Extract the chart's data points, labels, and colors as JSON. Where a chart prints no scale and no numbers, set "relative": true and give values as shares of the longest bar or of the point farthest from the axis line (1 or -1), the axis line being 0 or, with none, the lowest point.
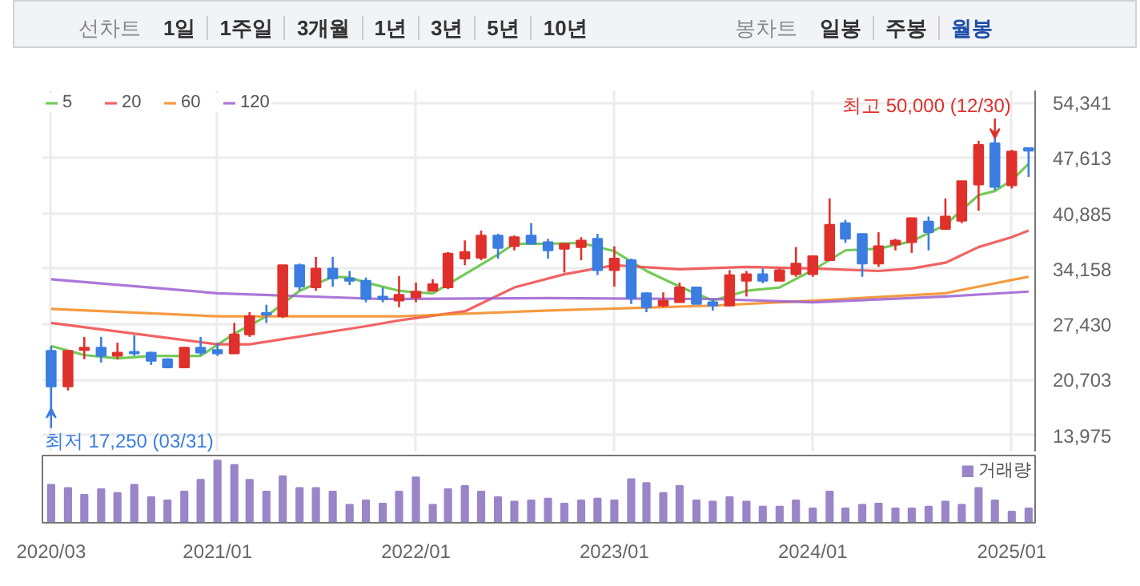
{
  "chart_data": [
    {
      "type": "candlestick",
      "annotations": [
        "선차트",
        "1일",
        "1주일",
        "3개월",
        "1년",
        "3년",
        "5년",
        "10년",
        "봉차트",
        "일봉",
        "주봉",
        "월봉",
        {
          "text": "최고 50,000 (12/30)",
          "x": "2024-12",
          "y": 50000
        },
        {
          "text": "최저 17,250 (03/31)",
          "x": "2020-03",
          "y": 17250
        }
      ],
      "x": [
        "2020-03",
        "2020-04",
        "2020-05",
        "2020-06",
        "2020-07",
        "2020-08",
        "2020-09",
        "2020-10",
        "2020-11",
        "2020-12",
        "2021-01",
        "2021-02",
        "2021-03",
        "2021-04",
        "2021-05",
        "2021-06",
        "2021-07",
        "2021-08",
        "2021-09",
        "2021-10",
        "2021-11",
        "2021-12",
        "2022-01",
        "2022-02",
        "2022-03",
        "2022-04",
        "2022-05",
        "2022-06",
        "2022-07",
        "2022-08",
        "2022-09",
        "2022-10",
        "2022-11",
        "2022-12",
        "2023-01",
        "2023-02",
        "2023-03",
        "2023-04",
        "2023-05",
        "2023-06",
        "2023-07",
        "2023-08",
        "2023-09",
        "2023-10",
        "2023-11",
        "2023-12",
        "2024-01",
        "2024-02",
        "2024-03",
        "2024-04",
        "2024-05",
        "2024-06",
        "2024-07",
        "2024-08",
        "2024-09",
        "2024-10",
        "2024-11",
        "2024-12",
        "2025-01",
        "2025-02"
      ],
      "ohlc": [
        [
          24200,
          24800,
          17250,
          19900
        ],
        [
          19900,
          24200,
          19400,
          24200
        ],
        [
          24300,
          25900,
          23200,
          24600
        ],
        [
          24600,
          25900,
          22800,
          23600
        ],
        [
          23600,
          25200,
          23200,
          24000
        ],
        [
          24100,
          26100,
          23600,
          23900
        ],
        [
          24000,
          24100,
          22500,
          23000
        ],
        [
          23200,
          23300,
          22100,
          22200
        ],
        [
          22200,
          24700,
          22200,
          24600
        ],
        [
          24600,
          25900,
          23700,
          24000
        ],
        [
          24300,
          25200,
          23600,
          23900
        ],
        [
          23900,
          27600,
          23900,
          26200
        ],
        [
          26200,
          28900,
          25900,
          28400
        ],
        [
          28800,
          29800,
          27600,
          28600
        ],
        [
          28400,
          34600,
          28200,
          34600
        ],
        [
          34600,
          34800,
          31500,
          32000
        ],
        [
          31900,
          35600,
          31500,
          34200
        ],
        [
          34200,
          35600,
          32000,
          33000
        ],
        [
          33000,
          33900,
          32200,
          32700
        ],
        [
          32700,
          33100,
          30100,
          30500
        ],
        [
          30800,
          31900,
          30100,
          30500
        ],
        [
          30300,
          33300,
          29500,
          31000
        ],
        [
          30700,
          32500,
          30100,
          31400
        ],
        [
          31500,
          32900,
          31500,
          32300
        ],
        [
          31900,
          36200,
          31700,
          36000
        ],
        [
          35400,
          37600,
          34600,
          36200
        ],
        [
          35500,
          38800,
          35200,
          38200
        ],
        [
          38200,
          38400,
          35400,
          36700
        ],
        [
          36900,
          38200,
          36400,
          38000
        ],
        [
          38200,
          39700,
          37200,
          37200
        ],
        [
          37400,
          37800,
          35400,
          36400
        ],
        [
          36600,
          37200,
          33700,
          37200
        ],
        [
          36800,
          38000,
          35200,
          37600
        ],
        [
          37800,
          38400,
          33400,
          34000
        ],
        [
          34000,
          36900,
          32000,
          35400
        ],
        [
          35200,
          35400,
          29900,
          30600
        ],
        [
          31200,
          31300,
          28900,
          29500
        ],
        [
          29700,
          31300,
          29500,
          30300
        ],
        [
          30100,
          32500,
          30100,
          31900
        ],
        [
          31900,
          31900,
          29900,
          29900
        ],
        [
          30100,
          30500,
          29100,
          29700
        ],
        [
          29700,
          34000,
          29700,
          33400
        ],
        [
          32700,
          33900,
          30800,
          33500
        ],
        [
          33500,
          34200,
          32400,
          32700
        ],
        [
          32700,
          34200,
          32700,
          34000
        ],
        [
          33500,
          36800,
          33200,
          34800
        ],
        [
          33500,
          35700,
          33200,
          35700
        ],
        [
          35200,
          42700,
          35200,
          39500
        ],
        [
          39700,
          40100,
          37300,
          37800
        ],
        [
          38400,
          38400,
          33200,
          34800
        ],
        [
          34800,
          38600,
          34400,
          36900
        ],
        [
          37100,
          37800,
          36400,
          37600
        ],
        [
          37400,
          40300,
          36100,
          40300
        ],
        [
          39900,
          40500,
          36400,
          38600
        ],
        [
          39000,
          42700,
          39000,
          40500
        ],
        [
          40000,
          44800,
          39700,
          44800
        ],
        [
          44400,
          49700,
          41200,
          49200
        ],
        [
          49400,
          50000,
          43700,
          44100
        ],
        [
          44300,
          48600,
          43900,
          48400
        ],
        [
          48800,
          48800,
          45300,
          48500
        ]
      ],
      "colors": [
        "#3b7de0",
        "#e0302b",
        "#e0302b",
        "#3b7de0",
        "#e0302b",
        "#3b7de0",
        "#3b7de0",
        "#3b7de0",
        "#e0302b",
        "#3b7de0",
        "#3b7de0",
        "#e0302b",
        "#e0302b",
        "#3b7de0",
        "#e0302b",
        "#3b7de0",
        "#e0302b",
        "#3b7de0",
        "#3b7de0",
        "#3b7de0",
        "#3b7de0",
        "#e0302b",
        "#e0302b",
        "#e0302b",
        "#e0302b",
        "#e0302b",
        "#e0302b",
        "#3b7de0",
        "#e0302b",
        "#3b7de0",
        "#3b7de0",
        "#e0302b",
        "#e0302b",
        "#3b7de0",
        "#e0302b",
        "#3b7de0",
        "#3b7de0",
        "#e0302b",
        "#e0302b",
        "#3b7de0",
        "#3b7de0",
        "#e0302b",
        "#e0302b",
        "#3b7de0",
        "#e0302b",
        "#e0302b",
        "#e0302b",
        "#e0302b",
        "#3b7de0",
        "#3b7de0",
        "#e0302b",
        "#e0302b",
        "#e0302b",
        "#3b7de0",
        "#e0302b",
        "#e0302b",
        "#e0302b",
        "#3b7de0",
        "#e0302b",
        "#3b7de0"
      ],
      "series": [
        {
          "type": "line",
          "name": "5",
          "color": "#5cc13c",
          "x": [
            "2020-03",
            "2020-05",
            "2020-07",
            "2020-09",
            "2020-12",
            "2021-02",
            "2021-04",
            "2021-06",
            "2021-08",
            "2021-09",
            "2021-10",
            "2021-12",
            "2022-01",
            "2022-02",
            "2022-04",
            "2022-06",
            "2022-07",
            "2022-09",
            "2022-11",
            "2023-01",
            "2023-03",
            "2023-05",
            "2023-07",
            "2023-09",
            "2023-11",
            "2024-01",
            "2024-03",
            "2024-05",
            "2024-07",
            "2024-09",
            "2024-11",
            "2024-12",
            "2025-01",
            "2025-02"
          ],
          "values": [
            24800,
            23700,
            23300,
            23600,
            23600,
            26300,
            28400,
            31500,
            33200,
            33100,
            32500,
            31500,
            31300,
            31200,
            33500,
            35900,
            37200,
            37200,
            37300,
            36300,
            33900,
            32000,
            30300,
            31500,
            31900,
            34000,
            36400,
            36600,
            37500,
            39500,
            43100,
            43600,
            44900,
            46900
          ]
        },
        {
          "type": "line",
          "name": "20",
          "color": "#f04848",
          "x": [
            "2020-03",
            "2021-01",
            "2021-03",
            "2021-10",
            "2021-12",
            "2022-04",
            "2022-07",
            "2022-10",
            "2023-01",
            "2023-05",
            "2023-09",
            "2024-01",
            "2024-05",
            "2024-07",
            "2024-09",
            "2024-11",
            "2025-01",
            "2025-02"
          ],
          "values": [
            27600,
            25000,
            25000,
            27200,
            27900,
            29000,
            31900,
            33500,
            34600,
            34100,
            34400,
            34200,
            33900,
            34200,
            34900,
            36800,
            38000,
            38800
          ]
        },
        {
          "type": "line",
          "name": "60",
          "color": "#f28a1e",
          "x": [
            "2020-03",
            "2021-01",
            "2021-12",
            "2022-09",
            "2023-07",
            "2024-01",
            "2024-09",
            "2025-02"
          ],
          "values": [
            29300,
            28400,
            28400,
            29100,
            29700,
            30300,
            31200,
            33200
          ]
        },
        {
          "type": "line",
          "name": "120",
          "color": "#9c5fd1",
          "x": [
            "2020-03",
            "2021-01",
            "2021-11",
            "2022-09",
            "2023-07",
            "2024-01",
            "2024-09",
            "2025-02"
          ],
          "values": [
            32900,
            31200,
            30500,
            30600,
            30500,
            30100,
            30800,
            31400
          ]
        }
      ],
      "legend": "top left",
      "grid": true,
      "tick_labels": "y",
      "xlim": [
        "2020-02-14",
        "2025-02-13"
      ],
      "xticks": [
        {
          "value": "2020-03",
          "label": null
        },
        {
          "value": "2021-01",
          "label": null
        },
        {
          "value": "2022-01",
          "label": null
        },
        {
          "value": "2023-01",
          "label": null
        },
        {
          "value": "2024-01",
          "label": null
        },
        {
          "value": "2025-01",
          "label": null
        }
      ],
      "ylim": [
        11900,
        55800
      ],
      "yticks": [
        {
          "value": 13975,
          "label": "13,975"
        },
        {
          "value": 20703,
          "label": "20,703"
        },
        {
          "value": 27430,
          "label": "27,430"
        },
        {
          "value": 34158,
          "label": "34,158"
        },
        {
          "value": 40885,
          "label": "40,885"
        },
        {
          "value": 47613,
          "label": "47,613"
        },
        {
          "value": 54341,
          "label": "54,341"
        }
      ]
    },
    {
      "type": "bar",
      "relative": true,
      "legend": "top right",
      "tick_labels": "x",
      "x": [
        "2020-03",
        "2020-04",
        "2020-05",
        "2020-06",
        "2020-07",
        "2020-08",
        "2020-09",
        "2020-10",
        "2020-11",
        "2020-12",
        "2021-01",
        "2021-02",
        "2021-03",
        "2021-04",
        "2021-05",
        "2021-06",
        "2021-07",
        "2021-08",
        "2021-09",
        "2021-10",
        "2021-11",
        "2021-12",
        "2022-01",
        "2022-02",
        "2022-03",
        "2022-04",
        "2022-05",
        "2022-06",
        "2022-07",
        "2022-08",
        "2022-09",
        "2022-10",
        "2022-11",
        "2022-12",
        "2023-01",
        "2023-02",
        "2023-03",
        "2023-04",
        "2023-05",
        "2023-06",
        "2023-07",
        "2023-08",
        "2023-09",
        "2023-10",
        "2023-11",
        "2023-12",
        "2024-01",
        "2024-02",
        "2024-03",
        "2024-04",
        "2024-05",
        "2024-06",
        "2024-07",
        "2024-08",
        "2024-09",
        "2024-10",
        "2024-11",
        "2024-12",
        "2025-01",
        "2025-02"
      ],
      "series": [
        {
          "name": "거래량",
          "color": "#9a85c8",
          "values": [
            0.61,
            0.56,
            0.45,
            0.54,
            0.48,
            0.61,
            0.41,
            0.36,
            0.5,
            0.69,
            1,
            0.93,
            0.69,
            0.5,
            0.75,
            0.56,
            0.56,
            0.5,
            0.29,
            0.36,
            0.31,
            0.5,
            0.73,
            0.29,
            0.54,
            0.59,
            0.5,
            0.41,
            0.34,
            0.36,
            0.39,
            0.31,
            0.36,
            0.39,
            0.36,
            0.7,
            0.64,
            0.48,
            0.59,
            0.36,
            0.34,
            0.41,
            0.34,
            0.26,
            0.26,
            0.36,
            0.23,
            0.5,
            0.23,
            0.29,
            0.31,
            0.23,
            0.23,
            0.26,
            0.34,
            0.29,
            0.56,
            0.36,
            0.18,
            0.23
          ]
        }
      ],
      "xlim": [
        "2020-02-14",
        "2025-02-13"
      ],
      "xticks": [
        {
          "value": "2020-03",
          "label": "2020/03"
        },
        {
          "value": "2021-01",
          "label": "2021/01"
        },
        {
          "value": "2022-01",
          "label": "2022/01"
        },
        {
          "value": "2023-01",
          "label": "2023/01"
        },
        {
          "value": "2024-01",
          "label": "2024/01"
        },
        {
          "value": "2025-01",
          "label": "2025/01"
        }
      ]
    }
  ]
}
